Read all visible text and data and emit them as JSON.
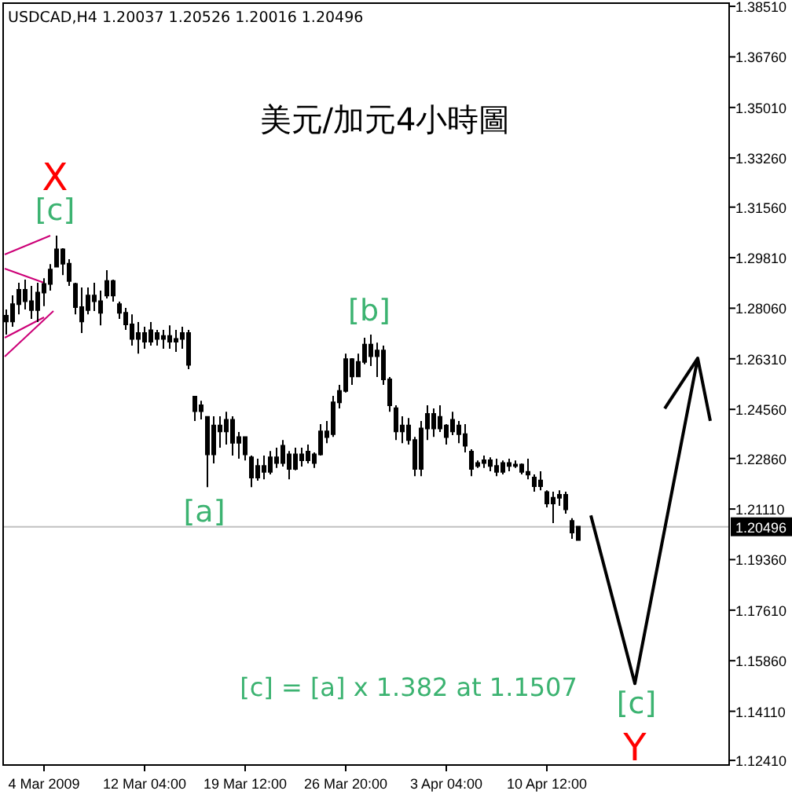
{
  "chart_data": {
    "type": "candlestick",
    "title": "美元/加元4小時圖",
    "subtitle": "USDCAD,H4 1.20037 1.20526 1.20016 1.20496",
    "color": "#000000",
    "categories": [
      null,
      null,
      null,
      null,
      null,
      null,
      "4 Mar 2009",
      null,
      null,
      null,
      null,
      null,
      null,
      null,
      null,
      null,
      null,
      null,
      null,
      null,
      null,
      null,
      "12 Mar 04:00",
      null,
      null,
      null,
      null,
      null,
      null,
      null,
      null,
      null,
      null,
      null,
      null,
      null,
      null,
      null,
      "19 Mar 12:00",
      null,
      null,
      null,
      null,
      null,
      null,
      null,
      null,
      null,
      null,
      null,
      null,
      null,
      null,
      null,
      "26 Mar 20:00",
      null,
      null,
      null,
      null,
      null,
      null,
      null,
      null,
      null,
      null,
      null,
      null,
      null,
      null,
      null,
      "3 Apr 04:00",
      null,
      null,
      null,
      null,
      null,
      null,
      null,
      null,
      null,
      null,
      null,
      null,
      null,
      null,
      null,
      "10 Apr 12:00",
      null,
      null,
      null,
      null,
      null,
      null,
      null,
      null,
      null,
      null,
      null,
      null,
      null,
      null,
      null,
      null,
      null,
      null,
      null,
      null,
      null,
      null,
      null,
      null,
      null,
      null,
      null,
      null,
      null
    ],
    "ohlc": [
      [
        1.278,
        1.2802,
        1.2715,
        1.276
      ],
      [
        1.276,
        1.2851,
        1.2742,
        1.282
      ],
      [
        1.282,
        1.2894,
        1.2785,
        1.287
      ],
      [
        1.287,
        1.2905,
        1.2802,
        1.283
      ],
      [
        1.283,
        1.2883,
        1.2769,
        1.28
      ],
      [
        1.28,
        1.2894,
        1.2758,
        1.286
      ],
      [
        1.286,
        1.291,
        1.2813,
        1.289
      ],
      [
        1.289,
        1.2959,
        1.2867,
        1.294
      ],
      [
        1.295,
        1.3057,
        1.2948,
        1.301
      ],
      [
        1.301,
        1.3014,
        1.2921,
        1.296
      ],
      [
        1.296,
        1.2976,
        1.2883,
        1.29
      ],
      [
        1.289,
        1.2894,
        1.2785,
        1.281
      ],
      [
        1.281,
        1.2878,
        1.272,
        1.276
      ],
      [
        1.28,
        1.2878,
        1.2785,
        1.285
      ],
      [
        1.285,
        1.2894,
        1.2796,
        1.283
      ],
      [
        1.283,
        1.2867,
        1.2747,
        1.279
      ],
      [
        1.285,
        1.2938,
        1.284,
        1.29
      ],
      [
        1.29,
        1.2905,
        1.2829,
        1.285
      ],
      [
        1.282,
        1.2829,
        1.2769,
        1.279
      ],
      [
        1.279,
        1.2807,
        1.2731,
        1.275
      ],
      [
        1.275,
        1.2785,
        1.2677,
        1.27
      ],
      [
        1.27,
        1.2758,
        1.2649,
        1.272
      ],
      [
        1.272,
        1.2742,
        1.2666,
        1.269
      ],
      [
        1.269,
        1.2758,
        1.2677,
        1.273
      ],
      [
        1.272,
        1.2731,
        1.2677,
        1.27
      ],
      [
        1.27,
        1.2731,
        1.2666,
        1.271
      ],
      [
        1.271,
        1.2747,
        1.2666,
        1.269
      ],
      [
        1.269,
        1.2731,
        1.2655,
        1.27
      ],
      [
        1.27,
        1.2742,
        1.2666,
        1.272
      ],
      [
        1.272,
        1.2731,
        1.2595,
        1.261
      ],
      [
        1.25,
        1.2503,
        1.2416,
        1.245
      ],
      [
        1.245,
        1.2486,
        1.2421,
        1.247
      ],
      [
        1.243,
        1.2432,
        1.2187,
        1.23
      ],
      [
        1.23,
        1.2432,
        1.2269,
        1.24
      ],
      [
        1.24,
        1.2432,
        1.2323,
        1.238
      ],
      [
        1.238,
        1.2448,
        1.2334,
        1.242
      ],
      [
        1.242,
        1.2432,
        1.2296,
        1.234
      ],
      [
        1.234,
        1.2378,
        1.2285,
        1.236
      ],
      [
        1.236,
        1.2361,
        1.2279,
        1.23
      ],
      [
        1.229,
        1.2296,
        1.2187,
        1.222
      ],
      [
        1.222,
        1.2285,
        1.2209,
        1.226
      ],
      [
        1.226,
        1.2296,
        1.2214,
        1.224
      ],
      [
        1.224,
        1.2312,
        1.2231,
        1.229
      ],
      [
        1.229,
        1.2323,
        1.2253,
        1.227
      ],
      [
        1.227,
        1.235,
        1.2258,
        1.233
      ],
      [
        1.23,
        1.2312,
        1.2214,
        1.225
      ],
      [
        1.225,
        1.2323,
        1.2245,
        1.23
      ],
      [
        1.23,
        1.2323,
        1.2258,
        1.228
      ],
      [
        1.228,
        1.2334,
        1.2269,
        1.231
      ],
      [
        1.23,
        1.2307,
        1.2253,
        1.227
      ],
      [
        1.23,
        1.2405,
        1.2296,
        1.238
      ],
      [
        1.238,
        1.2416,
        1.2339,
        1.236
      ],
      [
        1.237,
        1.2503,
        1.2361,
        1.248
      ],
      [
        1.248,
        1.2541,
        1.2459,
        1.252
      ],
      [
        1.252,
        1.2649,
        1.2514,
        1.263
      ],
      [
        1.263,
        1.2633,
        1.2541,
        1.257
      ],
      [
        1.257,
        1.2649,
        1.2568,
        1.262
      ],
      [
        1.262,
        1.2704,
        1.2612,
        1.268
      ],
      [
        1.268,
        1.2715,
        1.2606,
        1.264
      ],
      [
        1.264,
        1.2687,
        1.2568,
        1.266
      ],
      [
        1.266,
        1.2677,
        1.2541,
        1.256
      ],
      [
        1.256,
        1.2568,
        1.2448,
        1.247
      ],
      [
        1.246,
        1.247,
        1.235,
        1.238
      ],
      [
        1.238,
        1.2432,
        1.2339,
        1.24
      ],
      [
        1.24,
        1.2426,
        1.2334,
        1.235
      ],
      [
        1.235,
        1.2361,
        1.2225,
        1.225
      ],
      [
        1.225,
        1.2416,
        1.2225,
        1.239
      ],
      [
        1.239,
        1.247,
        1.235,
        1.244
      ],
      [
        1.244,
        1.2459,
        1.2361,
        1.239
      ],
      [
        1.239,
        1.247,
        1.2378,
        1.243
      ],
      [
        1.24,
        1.2405,
        1.2334,
        1.236
      ],
      [
        1.238,
        1.2448,
        1.2367,
        1.242
      ],
      [
        1.24,
        1.2416,
        1.2339,
        1.237
      ],
      [
        1.237,
        1.2405,
        1.2307,
        1.233
      ],
      [
        1.231,
        1.2318,
        1.2225,
        1.225
      ],
      [
        1.226,
        1.2279,
        1.2253,
        1.227
      ],
      [
        1.227,
        1.2296,
        1.2253,
        1.228
      ],
      [
        1.228,
        1.229,
        1.2242,
        1.226
      ],
      [
        1.226,
        1.2285,
        1.2225,
        1.224
      ],
      [
        1.224,
        1.2279,
        1.2231,
        1.227
      ],
      [
        1.227,
        1.2285,
        1.2242,
        1.226
      ],
      [
        1.226,
        1.2279,
        1.2253,
        1.2265
      ],
      [
        1.2265,
        1.2269,
        1.2231,
        1.224
      ],
      [
        1.224,
        1.2285,
        1.2214,
        1.223
      ],
      [
        1.222,
        1.2231,
        1.2171,
        1.219
      ],
      [
        1.219,
        1.2242,
        1.2176,
        1.221
      ],
      [
        1.217,
        1.2176,
        1.2117,
        1.213
      ],
      [
        1.213,
        1.2171,
        1.2062,
        1.215
      ],
      [
        1.215,
        1.2176,
        1.2122,
        1.216
      ],
      [
        1.216,
        1.2171,
        1.2095,
        1.211
      ],
      [
        1.207,
        1.2079,
        1.2008,
        1.203
      ],
      [
        1.2004,
        1.2053,
        1.2002,
        1.205
      ],
      null,
      null,
      null,
      null,
      null,
      null,
      null,
      null,
      null,
      null,
      null,
      null,
      null,
      null,
      null,
      null,
      null,
      null,
      null,
      null,
      null,
      null,
      null,
      null
    ],
    "series": [
      {
        "type": "line",
        "color": "#000000",
        "values": [
          null,
          null,
          null,
          null,
          null,
          null,
          null,
          null,
          null,
          null,
          null,
          null,
          null,
          null,
          null,
          null,
          null,
          null,
          null,
          null,
          null,
          null,
          null,
          null,
          null,
          null,
          null,
          null,
          null,
          null,
          null,
          null,
          null,
          null,
          null,
          null,
          null,
          null,
          null,
          null,
          null,
          null,
          null,
          null,
          null,
          null,
          null,
          null,
          null,
          null,
          null,
          null,
          null,
          null,
          null,
          null,
          null,
          null,
          null,
          null,
          null,
          null,
          null,
          null,
          null,
          null,
          null,
          null,
          null,
          null,
          null,
          null,
          null,
          null,
          null,
          null,
          null,
          null,
          null,
          null,
          null,
          null,
          null,
          null,
          null,
          null,
          null,
          null,
          null,
          null,
          null,
          null,
          null,
          1.2089,
          null,
          null,
          null,
          null,
          null,
          null,
          1.1507,
          null,
          null,
          null,
          null,
          null,
          null,
          null,
          null,
          null,
          1.2633,
          null,
          1.2416,
          null,
          null,
          null
        ]
      }
    ],
    "ylim": [
      1.1225,
      1.3862
    ],
    "yticks": [
      {
        "value": 1.3851,
        "label": "1.38510"
      },
      {
        "value": 1.3676,
        "label": "1.36760"
      },
      {
        "value": 1.3501,
        "label": "1.35010"
      },
      {
        "value": 1.3326,
        "label": "1.33260"
      },
      {
        "value": 1.3156,
        "label": "1.31560"
      },
      {
        "value": 1.2981,
        "label": "1.29810"
      },
      {
        "value": 1.2806,
        "label": "1.28060"
      },
      {
        "value": 1.2631,
        "label": "1.26310"
      },
      {
        "value": 1.2456,
        "label": "1.24560"
      },
      {
        "value": 1.2286,
        "label": "1.22860"
      },
      {
        "value": 1.2111,
        "label": "1.21110"
      },
      {
        "value": 1.1936,
        "label": "1.19360"
      },
      {
        "value": 1.1761,
        "label": "1.17610"
      },
      {
        "value": 1.1586,
        "label": "1.15860"
      },
      {
        "value": 1.1411,
        "label": "1.14110"
      },
      {
        "value": 1.1241,
        "label": "1.12410"
      }
    ],
    "ref_lines": [
      {
        "axis": "y",
        "value": 1.20496,
        "label": "1.20496",
        "color": "#c0c0c0"
      }
    ],
    "annotations": [
      "X",
      "[c]",
      "[b]",
      "[a]",
      "[c]",
      "Y",
      "[c] = [a] x 1.382 at 1.1507"
    ]
  }
}
